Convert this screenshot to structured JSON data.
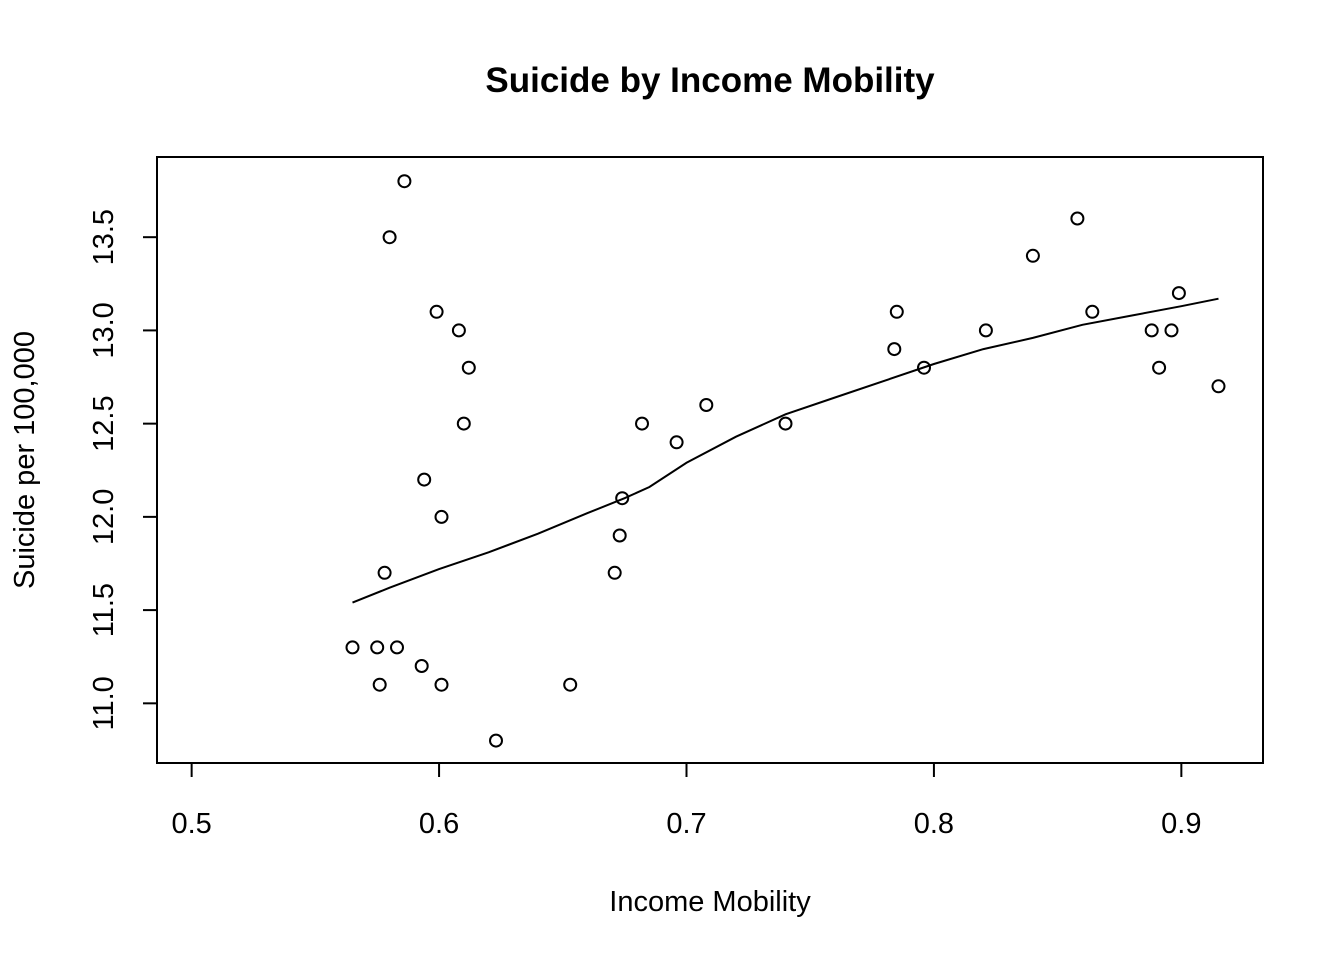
{
  "chart_data": {
    "type": "scatter",
    "title": "Suicide by Income Mobility",
    "xlabel": "Income Mobility",
    "ylabel": "Suicide per 100,000",
    "xlim": [
      0.486,
      0.933
    ],
    "ylim": [
      10.68,
      13.93
    ],
    "x_ticks": [
      0.5,
      0.6,
      0.7,
      0.8,
      0.9
    ],
    "x_tick_labels": [
      "0.5",
      "0.6",
      "0.7",
      "0.8",
      "0.9"
    ],
    "y_ticks": [
      11.0,
      11.5,
      12.0,
      12.5,
      13.0,
      13.5
    ],
    "y_tick_labels": [
      "11.0",
      "11.5",
      "12.0",
      "12.5",
      "13.0",
      "13.5"
    ],
    "grid": false,
    "legend": "none",
    "series": [
      {
        "kind": "points",
        "marker": "open-circle",
        "color": "#000000",
        "points": [
          [
            0.586,
            13.8
          ],
          [
            0.58,
            13.5
          ],
          [
            0.599,
            13.1
          ],
          [
            0.608,
            13.0
          ],
          [
            0.612,
            12.8
          ],
          [
            0.61,
            12.5
          ],
          [
            0.594,
            12.2
          ],
          [
            0.601,
            12.0
          ],
          [
            0.578,
            11.7
          ],
          [
            0.565,
            11.3
          ],
          [
            0.575,
            11.3
          ],
          [
            0.583,
            11.3
          ],
          [
            0.593,
            11.2
          ],
          [
            0.576,
            11.1
          ],
          [
            0.601,
            11.1
          ],
          [
            0.623,
            10.8
          ],
          [
            0.653,
            11.1
          ],
          [
            0.671,
            11.7
          ],
          [
            0.673,
            11.9
          ],
          [
            0.674,
            12.1
          ],
          [
            0.682,
            12.5
          ],
          [
            0.696,
            12.4
          ],
          [
            0.708,
            12.6
          ],
          [
            0.74,
            12.5
          ],
          [
            0.784,
            12.9
          ],
          [
            0.785,
            13.1
          ],
          [
            0.796,
            12.8
          ],
          [
            0.821,
            13.0
          ],
          [
            0.84,
            13.4
          ],
          [
            0.858,
            13.6
          ],
          [
            0.864,
            13.1
          ],
          [
            0.888,
            13.0
          ],
          [
            0.891,
            12.8
          ],
          [
            0.896,
            13.0
          ],
          [
            0.899,
            13.2
          ],
          [
            0.915,
            12.7
          ]
        ]
      },
      {
        "kind": "line",
        "color": "#000000",
        "points": [
          [
            0.565,
            11.54
          ],
          [
            0.58,
            11.62
          ],
          [
            0.6,
            11.72
          ],
          [
            0.62,
            11.81
          ],
          [
            0.64,
            11.91
          ],
          [
            0.66,
            12.02
          ],
          [
            0.675,
            12.1
          ],
          [
            0.685,
            12.16
          ],
          [
            0.7,
            12.29
          ],
          [
            0.72,
            12.43
          ],
          [
            0.74,
            12.55
          ],
          [
            0.76,
            12.64
          ],
          [
            0.78,
            12.73
          ],
          [
            0.8,
            12.82
          ],
          [
            0.82,
            12.9
          ],
          [
            0.84,
            12.96
          ],
          [
            0.86,
            13.03
          ],
          [
            0.88,
            13.08
          ],
          [
            0.9,
            13.13
          ],
          [
            0.915,
            13.17
          ]
        ]
      }
    ]
  }
}
